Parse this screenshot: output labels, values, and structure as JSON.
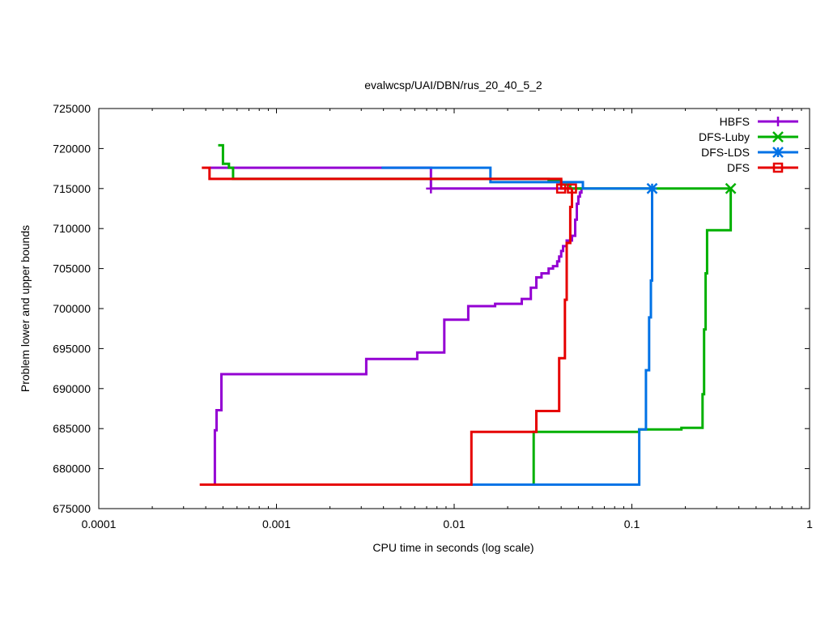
{
  "chart_data": {
    "type": "line",
    "title": "evalwcsp/UAI/DBN/rus_20_40_5_2",
    "xlabel": "CPU time in seconds (log scale)",
    "ylabel": "Problem lower and upper bounds",
    "xscale": "log",
    "xlim": [
      0.0001,
      1
    ],
    "ylim": [
      675000,
      725000
    ],
    "xticks": [
      0.0001,
      0.001,
      0.01,
      0.1,
      1
    ],
    "xtick_labels": [
      "0.0001",
      "0.001",
      "0.01",
      "0.1",
      "1"
    ],
    "yticks": [
      675000,
      680000,
      685000,
      690000,
      695000,
      700000,
      705000,
      710000,
      715000,
      720000,
      725000
    ],
    "ytick_labels": [
      "675000",
      "680000",
      "685000",
      "690000",
      "695000",
      "700000",
      "705000",
      "710000",
      "715000",
      "720000",
      "725000"
    ],
    "grid": false,
    "legend_position": "top-right",
    "series": [
      {
        "name": "HBFS",
        "color": "#9400d3",
        "marker": "plus",
        "upper": [
          [
            0.00042,
            717600
          ],
          [
            0.0039,
            717600
          ],
          [
            0.0074,
            717600
          ],
          [
            0.0074,
            715000
          ],
          [
            0.052,
            715000
          ]
        ],
        "lower": [
          [
            0.00045,
            678000
          ],
          [
            0.00045,
            684800
          ],
          [
            0.00046,
            684800
          ],
          [
            0.00046,
            687300
          ],
          [
            0.00049,
            687300
          ],
          [
            0.00049,
            691800
          ],
          [
            0.0032,
            691800
          ],
          [
            0.0032,
            693700
          ],
          [
            0.0062,
            693700
          ],
          [
            0.0062,
            694500
          ],
          [
            0.0088,
            694500
          ],
          [
            0.0088,
            698600
          ],
          [
            0.012,
            698600
          ],
          [
            0.012,
            700300
          ],
          [
            0.017,
            700300
          ],
          [
            0.017,
            700600
          ],
          [
            0.024,
            700600
          ],
          [
            0.024,
            701200
          ],
          [
            0.027,
            701200
          ],
          [
            0.027,
            702600
          ],
          [
            0.029,
            702600
          ],
          [
            0.029,
            703900
          ],
          [
            0.031,
            703900
          ],
          [
            0.031,
            704400
          ],
          [
            0.034,
            704400
          ],
          [
            0.034,
            705000
          ],
          [
            0.036,
            705000
          ],
          [
            0.036,
            705300
          ],
          [
            0.038,
            705300
          ],
          [
            0.038,
            705900
          ],
          [
            0.039,
            705900
          ],
          [
            0.039,
            706500
          ],
          [
            0.04,
            706500
          ],
          [
            0.04,
            707200
          ],
          [
            0.041,
            707200
          ],
          [
            0.041,
            707800
          ],
          [
            0.043,
            707800
          ],
          [
            0.043,
            708500
          ],
          [
            0.046,
            708500
          ],
          [
            0.046,
            709100
          ],
          [
            0.048,
            709100
          ],
          [
            0.048,
            711100
          ],
          [
            0.049,
            711100
          ],
          [
            0.049,
            713100
          ],
          [
            0.05,
            713100
          ],
          [
            0.05,
            714000
          ],
          [
            0.051,
            714000
          ],
          [
            0.051,
            714500
          ],
          [
            0.052,
            714500
          ],
          [
            0.052,
            715000
          ]
        ],
        "final_marker": [
          0.0074,
          715000
        ]
      },
      {
        "name": "DFS-Luby",
        "color": "#00b000",
        "marker": "x",
        "upper": [
          [
            0.00047,
            720400
          ],
          [
            0.0005,
            720400
          ],
          [
            0.0005,
            718100
          ],
          [
            0.00054,
            718100
          ],
          [
            0.00054,
            717600
          ],
          [
            0.00057,
            717600
          ],
          [
            0.00057,
            716200
          ],
          [
            0.034,
            716200
          ],
          [
            0.034,
            716000
          ],
          [
            0.04,
            716000
          ],
          [
            0.04,
            715500
          ],
          [
            0.045,
            715500
          ],
          [
            0.045,
            715000
          ],
          [
            0.36,
            715000
          ]
        ],
        "lower": [
          [
            0.028,
            678000
          ],
          [
            0.028,
            684600
          ],
          [
            0.11,
            684600
          ],
          [
            0.11,
            684900
          ],
          [
            0.19,
            684900
          ],
          [
            0.19,
            685100
          ],
          [
            0.25,
            685100
          ],
          [
            0.25,
            689300
          ],
          [
            0.255,
            689300
          ],
          [
            0.255,
            697400
          ],
          [
            0.26,
            697400
          ],
          [
            0.26,
            704400
          ],
          [
            0.265,
            704400
          ],
          [
            0.265,
            709800
          ],
          [
            0.36,
            709800
          ],
          [
            0.36,
            715000
          ]
        ],
        "final_marker": [
          0.36,
          715000
        ]
      },
      {
        "name": "DFS-LDS",
        "color": "#0072e6",
        "marker": "star",
        "upper": [
          [
            0.0039,
            717600
          ],
          [
            0.016,
            717600
          ],
          [
            0.016,
            715800
          ],
          [
            0.053,
            715800
          ],
          [
            0.053,
            715000
          ],
          [
            0.13,
            715000
          ]
        ],
        "lower": [
          [
            0.0125,
            678000
          ],
          [
            0.11,
            678000
          ],
          [
            0.11,
            684900
          ],
          [
            0.12,
            684900
          ],
          [
            0.12,
            692300
          ],
          [
            0.125,
            692300
          ],
          [
            0.125,
            698900
          ],
          [
            0.128,
            698900
          ],
          [
            0.128,
            703500
          ],
          [
            0.13,
            703500
          ],
          [
            0.13,
            715000
          ]
        ],
        "final_marker": [
          0.13,
          715000
        ]
      },
      {
        "name": "DFS",
        "color": "#e60000",
        "marker": "square",
        "upper": [
          [
            0.00038,
            717600
          ],
          [
            0.00042,
            717600
          ],
          [
            0.00042,
            716200
          ],
          [
            0.0006,
            716200
          ],
          [
            0.0006,
            716200
          ],
          [
            0.04,
            716200
          ],
          [
            0.04,
            715000
          ],
          [
            0.046,
            715000
          ]
        ],
        "lower": [
          [
            0.00037,
            678000
          ],
          [
            0.0125,
            678000
          ],
          [
            0.0125,
            684600
          ],
          [
            0.029,
            684600
          ],
          [
            0.029,
            687200
          ],
          [
            0.039,
            687200
          ],
          [
            0.039,
            693800
          ],
          [
            0.042,
            693800
          ],
          [
            0.042,
            701100
          ],
          [
            0.043,
            701100
          ],
          [
            0.043,
            708200
          ],
          [
            0.045,
            708200
          ],
          [
            0.045,
            712700
          ],
          [
            0.046,
            712700
          ],
          [
            0.046,
            715000
          ]
        ],
        "markers": [
          [
            0.04,
            715000
          ],
          [
            0.046,
            715000
          ]
        ]
      }
    ]
  }
}
